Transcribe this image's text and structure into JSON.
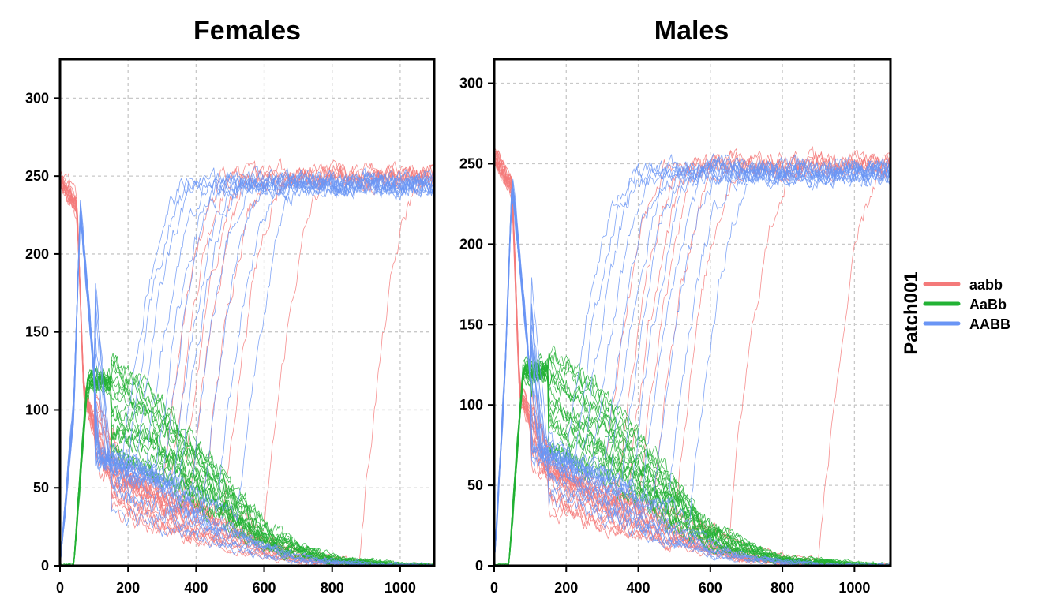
{
  "chart_data": [
    {
      "type": "line",
      "title": "Females",
      "xlim": [
        0,
        1100
      ],
      "ylim": [
        0,
        325
      ],
      "xticks": [
        0,
        200,
        400,
        600,
        800,
        1000
      ],
      "yticks": [
        0,
        50,
        100,
        150,
        200,
        250,
        300
      ],
      "grid": true,
      "series": [
        {
          "name": "aabb",
          "color": "#F47A7A",
          "replicates": 20,
          "approx": {
            "x": [
              0,
              50,
              70,
              150,
              300,
              500,
              700,
              1000,
              1100
            ],
            "y": [
              248,
              230,
              110,
              60,
              45,
              30,
              10,
              0,
              0
            ]
          },
          "recovering_runs": {
            "count": 8,
            "y_end": 250,
            "takeoff_x": [
              300,
              320,
              360,
              380,
              420,
              480,
              600,
              880
            ]
          }
        },
        {
          "name": "AaBb",
          "color": "#22B234",
          "replicates": 20,
          "approx": {
            "x": [
              0,
              40,
              80,
              150,
              300,
              450,
              600,
              800,
              1050
            ],
            "y": [
              0,
              0,
              118,
              120,
              110,
              80,
              35,
              10,
              0
            ]
          }
        },
        {
          "name": "AABB",
          "color": "#6A95F5",
          "replicates": 20,
          "approx": {
            "x": [
              0,
              40,
              60,
              120,
              300,
              500,
              700,
              900,
              1100
            ],
            "y": [
              0,
              100,
              230,
              70,
              55,
              30,
              10,
              2,
              0
            ]
          },
          "recovering_runs": {
            "count": 12,
            "y_end": 245,
            "takeoff_x": [
              180,
              200,
              220,
              250,
              280,
              300,
              330,
              350,
              380,
              420,
              460,
              520
            ]
          }
        }
      ]
    },
    {
      "type": "line",
      "title": "Males",
      "xlim": [
        0,
        1100
      ],
      "ylim": [
        0,
        315
      ],
      "xticks": [
        0,
        200,
        400,
        600,
        800,
        1000
      ],
      "yticks": [
        0,
        50,
        100,
        150,
        200,
        250,
        300
      ],
      "grid": true,
      "series": [
        {
          "name": "aabb",
          "color": "#F47A7A",
          "replicates": 20,
          "approx": {
            "x": [
              0,
              50,
              70,
              150,
              300,
              500,
              700,
              1000,
              1100
            ],
            "y": [
              255,
              235,
              110,
              60,
              45,
              30,
              10,
              0,
              0
            ]
          },
          "recovering_runs": {
            "count": 8,
            "y_end": 250,
            "takeoff_x": [
              300,
              340,
              370,
              400,
              440,
              500,
              650,
              900
            ]
          }
        },
        {
          "name": "AaBb",
          "color": "#22B234",
          "replicates": 20,
          "approx": {
            "x": [
              0,
              40,
              80,
              150,
              300,
              450,
              600,
              800,
              1080
            ],
            "y": [
              0,
              0,
              120,
              122,
              110,
              80,
              35,
              10,
              0
            ]
          }
        },
        {
          "name": "AABB",
          "color": "#6A95F5",
          "replicates": 20,
          "approx": {
            "x": [
              0,
              30,
              50,
              120,
              300,
              500,
              700,
              900,
              1100
            ],
            "y": [
              0,
              120,
              240,
              70,
              55,
              30,
              10,
              2,
              0
            ]
          },
          "recovering_runs": {
            "count": 12,
            "y_end": 245,
            "takeoff_x": [
              200,
              220,
              240,
              270,
              300,
              320,
              350,
              380,
              410,
              440,
              480,
              540
            ]
          }
        }
      ]
    }
  ],
  "legend": {
    "title": "Patch001",
    "position": "right",
    "items": [
      {
        "label": "aabb",
        "color": "#F47A7A"
      },
      {
        "label": "AaBb",
        "color": "#22B234"
      },
      {
        "label": "AABB",
        "color": "#6A95F5"
      }
    ]
  }
}
